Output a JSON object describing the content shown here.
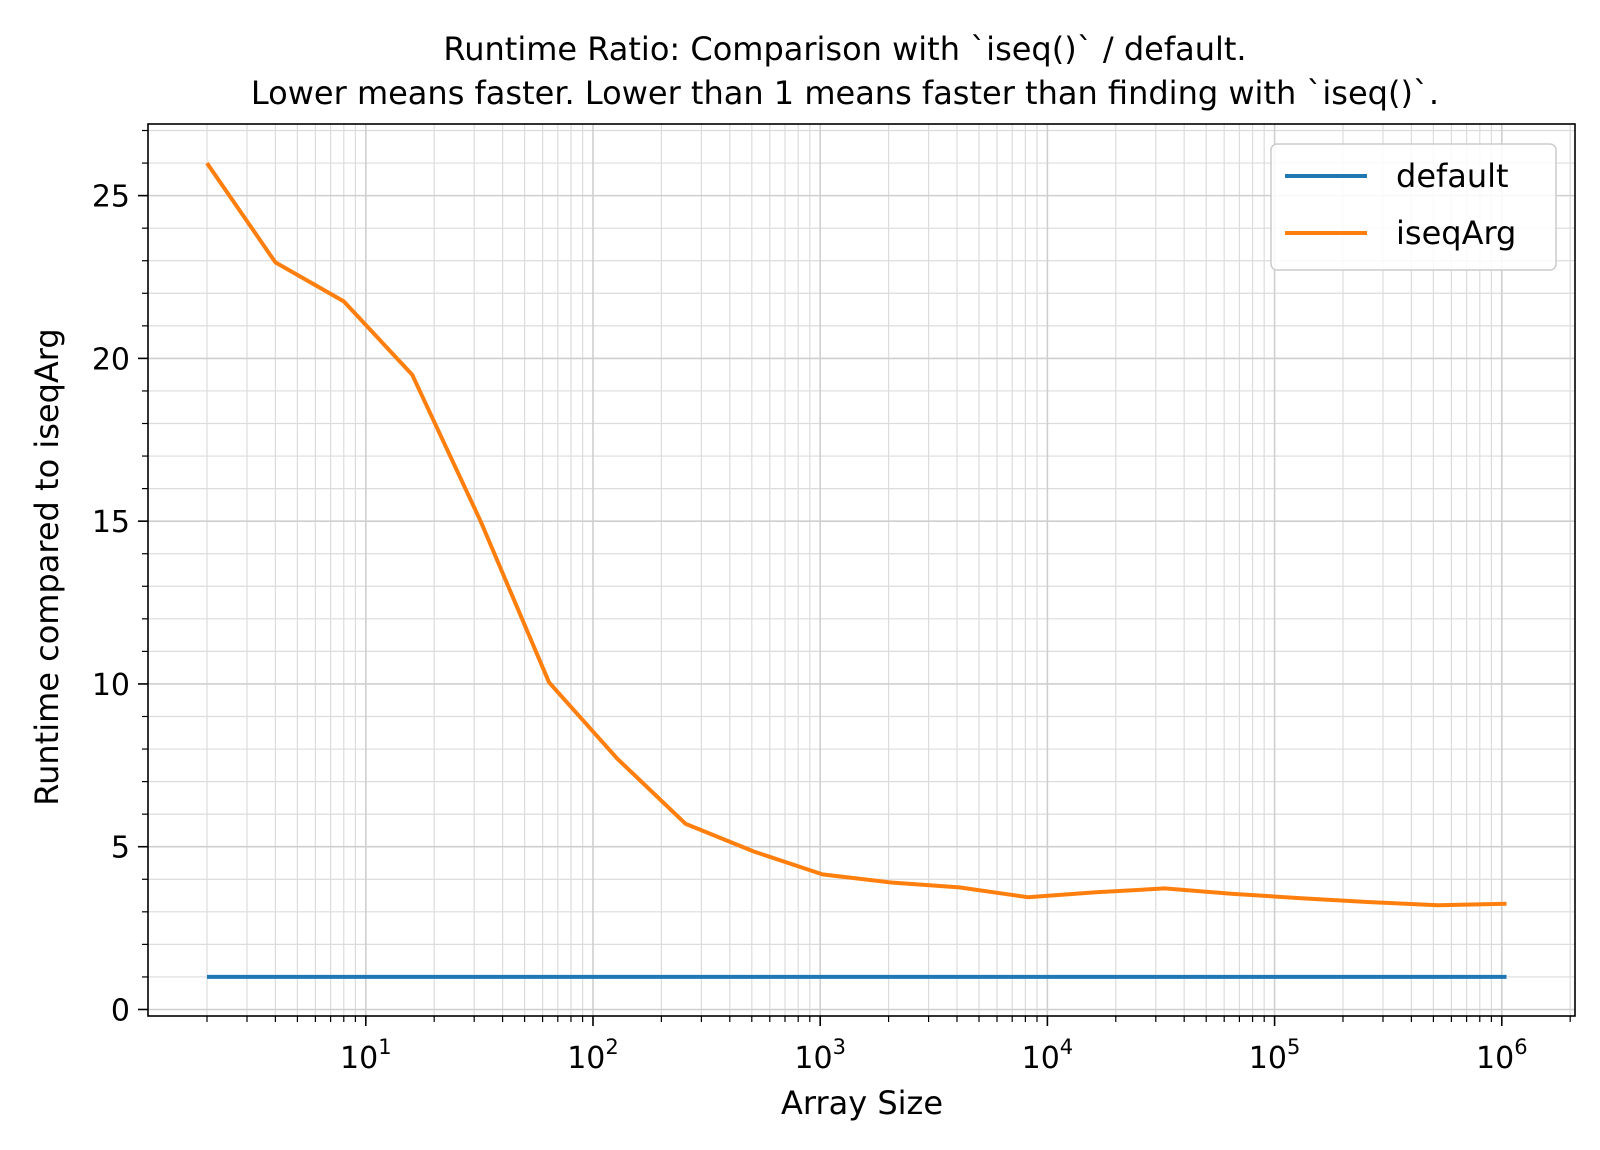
{
  "chart_data": {
    "type": "line",
    "title": "Runtime Ratio: Comparison with `iseq()` / default.",
    "subtitle": "Lower means faster. Lower than 1 means faster than finding with `iseq()`.",
    "xlabel": "Array Size",
    "ylabel": "Runtime compared to iseqArg",
    "xscale": "log",
    "xlim": [
      1.1,
      2100000
    ],
    "ylim": [
      -0.2,
      27.2
    ],
    "yticks": [
      0,
      5,
      10,
      15,
      20,
      25
    ],
    "xticks": [
      {
        "value": 10,
        "base": "10",
        "exp": "1"
      },
      {
        "value": 100,
        "base": "10",
        "exp": "2"
      },
      {
        "value": 1000,
        "base": "10",
        "exp": "3"
      },
      {
        "value": 10000,
        "base": "10",
        "exp": "4"
      },
      {
        "value": 100000,
        "base": "10",
        "exp": "5"
      },
      {
        "value": 1000000,
        "base": "10",
        "exp": "6"
      }
    ],
    "grid": true,
    "legend_position": "top-right",
    "x": [
      2,
      4,
      8,
      16,
      32,
      64,
      128,
      256,
      512,
      1024,
      2048,
      4096,
      8192,
      16384,
      32768,
      65536,
      131072,
      262144,
      524288,
      1048576
    ],
    "series": [
      {
        "name": "default",
        "color": "#1f77b4",
        "values": [
          1,
          1,
          1,
          1,
          1,
          1,
          1,
          1,
          1,
          1,
          1,
          1,
          1,
          1,
          1,
          1,
          1,
          1,
          1,
          1
        ]
      },
      {
        "name": "iseqArg",
        "color": "#ff7f0e",
        "values": [
          26.0,
          22.95,
          21.75,
          19.5,
          15.0,
          10.05,
          7.7,
          5.7,
          4.85,
          4.15,
          3.9,
          3.75,
          3.45,
          3.6,
          3.72,
          3.55,
          3.42,
          3.3,
          3.2,
          3.25
        ]
      }
    ]
  }
}
